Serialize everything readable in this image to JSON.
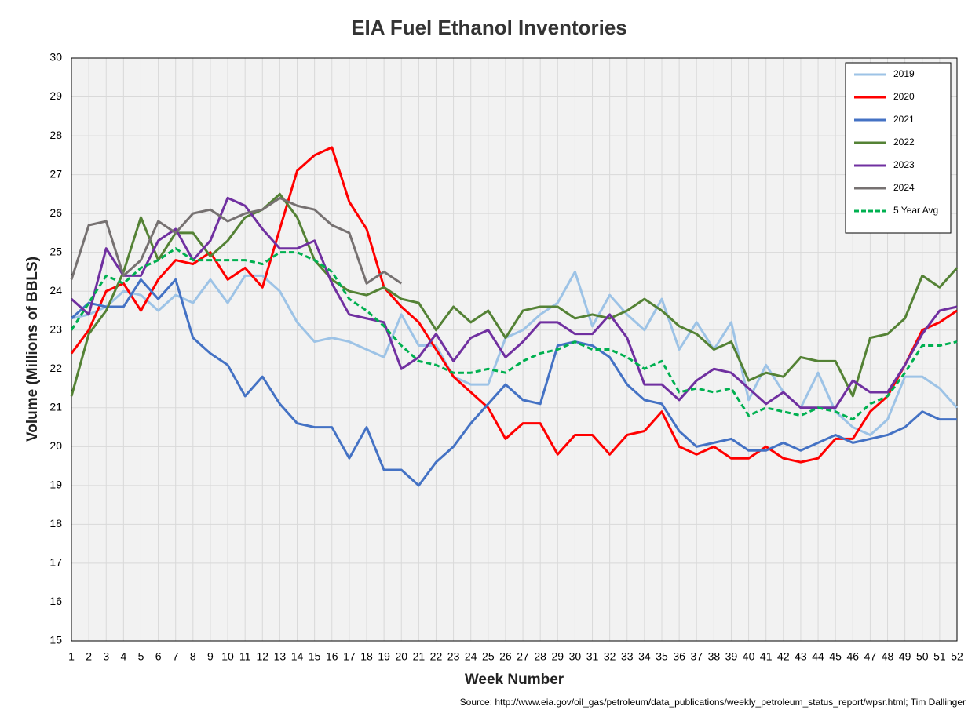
{
  "chart_data": {
    "type": "line",
    "title": "EIA Fuel Ethanol Inventories",
    "x_label": "Week Number",
    "y_label": "Volume (Millions of BBLS)",
    "source": "Source: http://www.eia.gov/oil_gas/petroleum/data_publications/weekly_petroleum_status_report/wpsr.html; Tim Dallinger",
    "x": [
      1,
      2,
      3,
      4,
      5,
      6,
      7,
      8,
      9,
      10,
      11,
      12,
      13,
      14,
      15,
      16,
      17,
      18,
      19,
      20,
      21,
      22,
      23,
      24,
      25,
      26,
      27,
      28,
      29,
      30,
      31,
      32,
      33,
      34,
      35,
      36,
      37,
      38,
      39,
      40,
      41,
      42,
      43,
      44,
      45,
      46,
      47,
      48,
      49,
      50,
      51,
      52
    ],
    "xlim": [
      1,
      52
    ],
    "ylim": [
      15,
      30
    ],
    "yticks": [
      15,
      16,
      17,
      18,
      19,
      20,
      21,
      22,
      23,
      24,
      25,
      26,
      27,
      28,
      29,
      30
    ],
    "grid": true,
    "legend": "upper right",
    "series": [
      {
        "name": "2019",
        "color": "#9dc3e6",
        "values": [
          23.3,
          23.4,
          23.6,
          24.0,
          23.9,
          23.5,
          23.9,
          23.7,
          24.3,
          23.7,
          24.4,
          24.4,
          24.0,
          23.2,
          22.7,
          22.8,
          22.7,
          22.5,
          22.3,
          23.4,
          22.6,
          22.6,
          21.8,
          21.6,
          21.6,
          22.8,
          23.0,
          23.4,
          23.7,
          24.5,
          23.1,
          23.9,
          23.4,
          23.0,
          23.8,
          22.5,
          23.2,
          22.5,
          23.2,
          21.2,
          22.1,
          21.4,
          21.0,
          21.9,
          20.9,
          20.5,
          20.3,
          20.7,
          21.8,
          21.8,
          21.5,
          21.0
        ]
      },
      {
        "name": "2020",
        "color": "#ff0000",
        "values": [
          22.4,
          23.0,
          24.0,
          24.2,
          23.5,
          24.3,
          24.8,
          24.7,
          25.0,
          24.3,
          24.6,
          24.1,
          25.6,
          27.1,
          27.5,
          27.7,
          26.3,
          25.6,
          24.1,
          23.6,
          23.2,
          22.5,
          21.8,
          21.4,
          21.0,
          20.2,
          20.6,
          20.6,
          19.8,
          20.3,
          20.3,
          19.8,
          20.3,
          20.4,
          20.9,
          20.0,
          19.8,
          20.0,
          19.7,
          19.7,
          20.0,
          19.7,
          19.6,
          19.7,
          20.2,
          20.2,
          20.9,
          21.3,
          22.1,
          23.0,
          23.2,
          23.5
        ]
      },
      {
        "name": "2021",
        "color": "#4472c4",
        "values": [
          23.3,
          23.7,
          23.6,
          23.6,
          24.3,
          23.8,
          24.3,
          22.8,
          22.4,
          22.1,
          21.3,
          21.8,
          21.1,
          20.6,
          20.5,
          20.5,
          19.7,
          20.5,
          19.4,
          19.4,
          19.0,
          19.6,
          20.0,
          20.6,
          21.1,
          21.6,
          21.2,
          21.1,
          22.6,
          22.7,
          22.6,
          22.3,
          21.6,
          21.2,
          21.1,
          20.4,
          20.0,
          20.1,
          20.2,
          19.9,
          19.9,
          20.1,
          19.9,
          20.1,
          20.3,
          20.1,
          20.2,
          20.3,
          20.5,
          20.9,
          20.7,
          20.7
        ]
      },
      {
        "name": "2022",
        "color": "#548235",
        "values": [
          21.3,
          22.9,
          23.5,
          24.5,
          25.9,
          24.8,
          25.5,
          25.5,
          24.9,
          25.3,
          25.9,
          26.1,
          26.5,
          25.9,
          24.8,
          24.3,
          24.0,
          23.9,
          24.1,
          23.8,
          23.7,
          23.0,
          23.6,
          23.2,
          23.5,
          22.8,
          23.5,
          23.6,
          23.6,
          23.3,
          23.4,
          23.3,
          23.5,
          23.8,
          23.5,
          23.1,
          22.9,
          22.5,
          22.7,
          21.7,
          21.9,
          21.8,
          22.3,
          22.2,
          22.2,
          21.3,
          22.8,
          22.9,
          23.3,
          24.4,
          24.1,
          24.6
        ]
      },
      {
        "name": "2023",
        "color": "#7030a0",
        "values": [
          23.8,
          23.4,
          25.1,
          24.4,
          24.4,
          25.3,
          25.6,
          24.8,
          25.3,
          26.4,
          26.2,
          25.6,
          25.1,
          25.1,
          25.3,
          24.2,
          23.4,
          23.3,
          23.2,
          22.0,
          22.3,
          22.9,
          22.2,
          22.8,
          23.0,
          22.3,
          22.7,
          23.2,
          23.2,
          22.9,
          22.9,
          23.4,
          22.8,
          21.6,
          21.6,
          21.2,
          21.7,
          22.0,
          21.9,
          21.5,
          21.1,
          21.4,
          21.0,
          21.0,
          21.0,
          21.7,
          21.4,
          21.4,
          22.1,
          22.9,
          23.5,
          23.6
        ]
      },
      {
        "name": "2024",
        "color": "#767171",
        "values": [
          24.3,
          25.7,
          25.8,
          24.4,
          24.8,
          25.8,
          25.5,
          26.0,
          26.1,
          25.8,
          26.0,
          26.1,
          26.4,
          26.2,
          26.1,
          25.7,
          25.5,
          24.2,
          24.5,
          24.2,
          null,
          null,
          null,
          null,
          null,
          null,
          null,
          null,
          null,
          null,
          null,
          null,
          null,
          null,
          null,
          null,
          null,
          null,
          null,
          null,
          null,
          null,
          null,
          null,
          null,
          null,
          null,
          null,
          null,
          null,
          null,
          null
        ]
      },
      {
        "name": "5 Year Avg",
        "color": "#00b050",
        "dashed": true,
        "values": [
          23.0,
          23.7,
          24.4,
          24.2,
          24.6,
          24.8,
          25.1,
          24.8,
          24.8,
          24.8,
          24.8,
          24.7,
          25.0,
          25.0,
          24.8,
          24.5,
          23.8,
          23.5,
          23.1,
          22.6,
          22.2,
          22.1,
          21.9,
          21.9,
          22.0,
          21.9,
          22.2,
          22.4,
          22.5,
          22.7,
          22.5,
          22.5,
          22.3,
          22.0,
          22.2,
          21.4,
          21.5,
          21.4,
          21.5,
          20.8,
          21.0,
          20.9,
          20.8,
          21.0,
          20.9,
          20.7,
          21.1,
          21.3,
          21.9,
          22.6,
          22.6,
          22.7
        ]
      }
    ]
  }
}
